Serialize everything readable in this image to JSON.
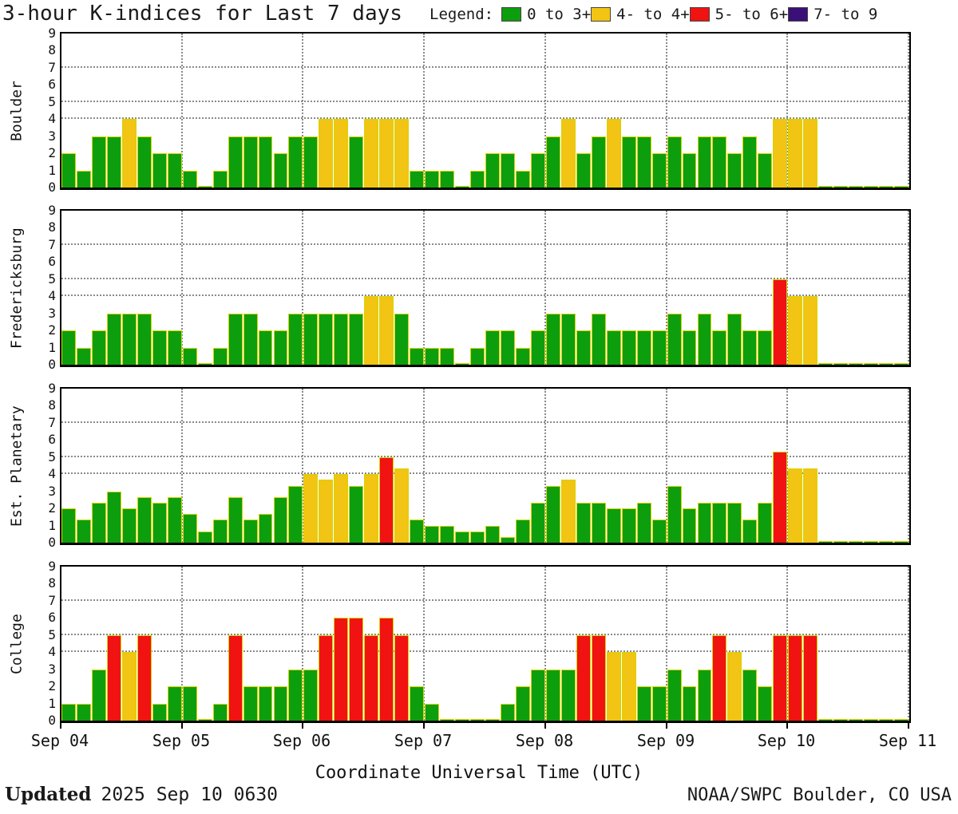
{
  "title": "3-hour K-indices for Last 7 days",
  "legend_label": "Legend:",
  "xlabel": "Coordinate Universal Time (UTC)",
  "x_tick_labels": [
    "Sep 04",
    "Sep 05",
    "Sep 06",
    "Sep 07",
    "Sep 08",
    "Sep 09",
    "Sep 10",
    "Sep 11"
  ],
  "footer": {
    "updated_label": "Updated",
    "updated_value": "2025 Sep 10 0630",
    "credit": "NOAA/SWPC Boulder, CO USA"
  },
  "chart_data": {
    "type": "bar",
    "title": "3-hour K-indices for Last 7 days",
    "xlabel": "Coordinate Universal Time (UTC)",
    "bin_hours": 3,
    "days": [
      "Sep 04",
      "Sep 05",
      "Sep 06",
      "Sep 07",
      "Sep 08",
      "Sep 09",
      "Sep 10"
    ],
    "ylim": [
      0,
      9
    ],
    "yticks": [
      0,
      1,
      2,
      3,
      4,
      5,
      6,
      7,
      8,
      9
    ],
    "threshold_gridlines_y": [
      4,
      5,
      7
    ],
    "grid": "dotted",
    "legend_position": "top-right",
    "legend": [
      {
        "label": "0 to 3+",
        "color": "#0d9e0d",
        "max": 3.49
      },
      {
        "label": "4- to 4+",
        "color": "#f2c413",
        "max": 4.49
      },
      {
        "label": "5- to 6+",
        "color": "#f11212",
        "max": 6.49
      },
      {
        "label": "7- to 9",
        "color": "#3a1078",
        "max": 9
      }
    ],
    "bar_outline_color": "#d6d300",
    "panels": [
      {
        "station": "Boulder",
        "values": [
          2,
          1,
          3,
          3,
          4,
          3,
          2,
          2,
          1,
          0,
          1,
          3,
          3,
          3,
          2,
          3,
          3,
          4,
          4,
          3,
          4,
          4,
          4,
          1,
          1,
          1,
          0,
          1,
          2,
          2,
          1,
          2,
          3,
          4,
          2,
          3,
          4,
          3,
          3,
          2,
          3,
          2,
          3,
          3,
          2,
          3,
          2,
          4,
          4,
          4,
          0,
          0,
          0,
          0,
          0,
          0
        ]
      },
      {
        "station": "Fredericksburg",
        "values": [
          2,
          1,
          2,
          3,
          3,
          3,
          2,
          2,
          1,
          0,
          1,
          3,
          3,
          2,
          2,
          3,
          3,
          3,
          3,
          3,
          4,
          4,
          3,
          1,
          1,
          1,
          0,
          1,
          2,
          2,
          1,
          2,
          3,
          3,
          2,
          3,
          2,
          2,
          2,
          2,
          3,
          2,
          3,
          2,
          3,
          2,
          2,
          5,
          4,
          4,
          0,
          0,
          0,
          0,
          0,
          0
        ]
      },
      {
        "station": "Est. Planetary",
        "values": [
          2,
          1.33,
          2.33,
          3,
          2,
          2.67,
          2.33,
          2.67,
          1.67,
          0.67,
          1.33,
          2.67,
          1.33,
          1.67,
          2.67,
          3.33,
          4,
          3.67,
          4,
          3.33,
          4,
          5,
          4.33,
          1.33,
          1,
          1,
          0.67,
          0.67,
          1,
          0.33,
          1.33,
          2.33,
          3.33,
          3.67,
          2.33,
          2.33,
          2,
          2,
          2.33,
          1.33,
          3.33,
          2,
          2.33,
          2.33,
          2.33,
          1.33,
          2.33,
          5.33,
          4.33,
          4.33,
          0,
          0,
          0,
          0,
          0,
          0
        ]
      },
      {
        "station": "College",
        "values": [
          1,
          1,
          3,
          5,
          4,
          5,
          1,
          2,
          2,
          0,
          1,
          5,
          2,
          2,
          2,
          3,
          3,
          5,
          6,
          6,
          5,
          6,
          5,
          2,
          1,
          0,
          0,
          0,
          0,
          1,
          2,
          3,
          3,
          3,
          5,
          5,
          4,
          4,
          2,
          2,
          3,
          2,
          3,
          5,
          4,
          3,
          2,
          5,
          5,
          5,
          0,
          0,
          0,
          0,
          0,
          0
        ]
      }
    ]
  }
}
